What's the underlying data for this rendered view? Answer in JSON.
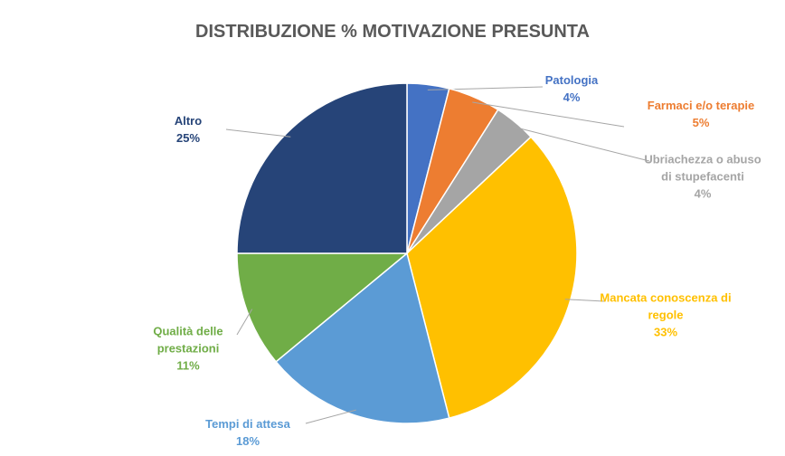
{
  "chart_data": {
    "type": "pie",
    "title": "DISTRIBUZIONE % MOTIVAZIONE PRESUNTA",
    "categories": [
      "Patologia",
      "Farmaci e/o terapie",
      "Ubriachezza o abuso di stupefacenti",
      "Mancata conoscenza di regole",
      "Tempi di attesa",
      "Qualità delle prestazioni",
      "Altro"
    ],
    "values": [
      4,
      5,
      4,
      33,
      18,
      11,
      25
    ],
    "value_labels": [
      "4%",
      "5%",
      "4%",
      "33%",
      "18%",
      "11%",
      "25%"
    ],
    "colors": [
      "#4472c4",
      "#ed7d31",
      "#a5a5a5",
      "#ffc000",
      "#5b9bd5",
      "#70ad47",
      "#264478"
    ]
  }
}
